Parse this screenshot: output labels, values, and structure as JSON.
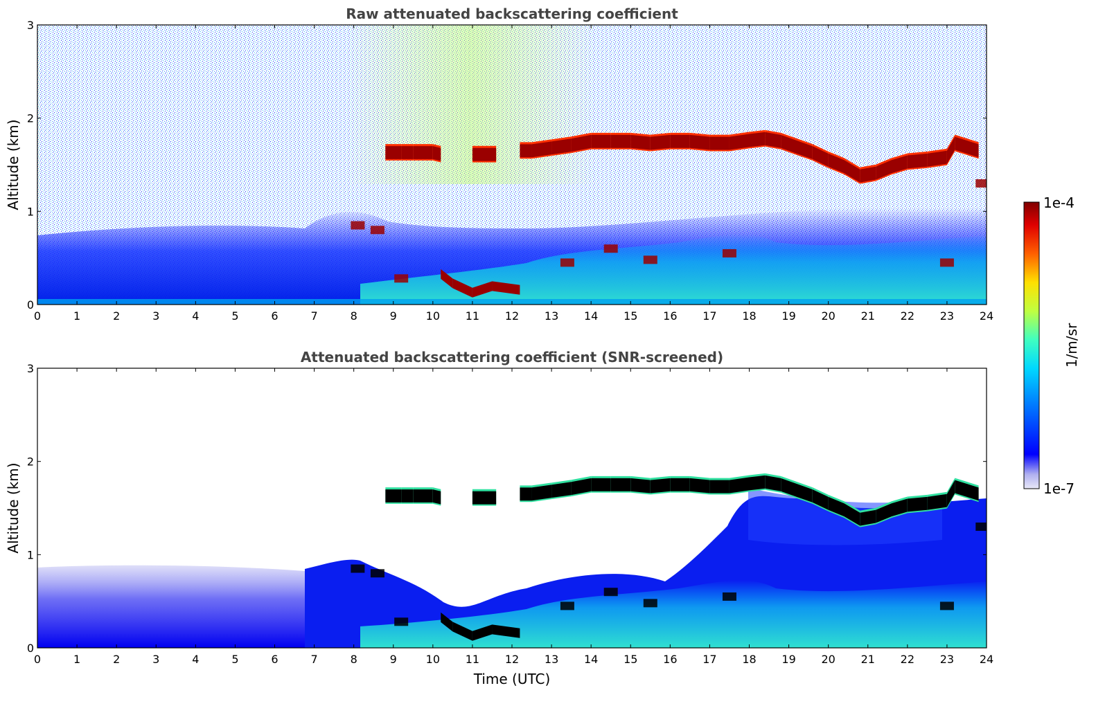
{
  "chart_data": [
    {
      "type": "heatmap",
      "title": "Raw attenuated backscattering coefficient",
      "xlabel": "",
      "ylabel": "Altitude (km)",
      "xlim": [
        0,
        24
      ],
      "ylim": [
        0,
        3
      ],
      "x_ticks": [
        "0",
        "1",
        "2",
        "3",
        "4",
        "5",
        "6",
        "7",
        "8",
        "9",
        "10",
        "11",
        "12",
        "13",
        "14",
        "15",
        "16",
        "17",
        "18",
        "19",
        "20",
        "21",
        "22",
        "23",
        "24"
      ],
      "y_ticks": [
        "0",
        "1",
        "2",
        "3"
      ],
      "grid": false,
      "screened": false
    },
    {
      "type": "heatmap",
      "title": "Attenuated backscattering coefficient (SNR-screened)",
      "xlabel": "Time (UTC)",
      "ylabel": "Altitude (km)",
      "xlim": [
        0,
        24
      ],
      "ylim": [
        0,
        3
      ],
      "x_ticks": [
        "0",
        "1",
        "2",
        "3",
        "4",
        "5",
        "6",
        "7",
        "8",
        "9",
        "10",
        "11",
        "12",
        "13",
        "14",
        "15",
        "16",
        "17",
        "18",
        "19",
        "20",
        "21",
        "22",
        "23",
        "24"
      ],
      "y_ticks": [
        "0",
        "1",
        "2",
        "3"
      ],
      "grid": false,
      "screened": true
    }
  ],
  "colorbar": {
    "label": "1/m/sr",
    "max_label": "1e-4",
    "min_label": "1e-7",
    "scale": "log",
    "range": [
      1e-07,
      0.0001
    ],
    "colormap": "jet",
    "colors": [
      "#e8e8f8",
      "#b0b0f0",
      "#0000ff",
      "#0080ff",
      "#00d8ff",
      "#40ffc0",
      "#c0ff40",
      "#ffe000",
      "#ff6000",
      "#e00000",
      "#800000"
    ]
  },
  "cloud_layer_top": {
    "x_hours": [
      8.8,
      9.2,
      9.5,
      10.0,
      10.2,
      11.0,
      11.6,
      12.2,
      12.5,
      13.0,
      13.5,
      14.0,
      14.5,
      15.0,
      15.5,
      16.0,
      16.5,
      17.0,
      17.5,
      18.0,
      18.4,
      18.8,
      19.2,
      19.6,
      20.0,
      20.4,
      20.8,
      21.2,
      21.6,
      22.0,
      22.5,
      23.0,
      23.2,
      23.8
    ],
    "altitude_km": [
      1.7,
      1.7,
      1.7,
      1.7,
      1.68,
      1.68,
      1.68,
      1.72,
      1.72,
      1.75,
      1.78,
      1.82,
      1.82,
      1.82,
      1.8,
      1.82,
      1.82,
      1.8,
      1.8,
      1.83,
      1.85,
      1.82,
      1.76,
      1.7,
      1.62,
      1.55,
      1.45,
      1.48,
      1.55,
      1.6,
      1.62,
      1.65,
      1.8,
      1.72
    ]
  }
}
